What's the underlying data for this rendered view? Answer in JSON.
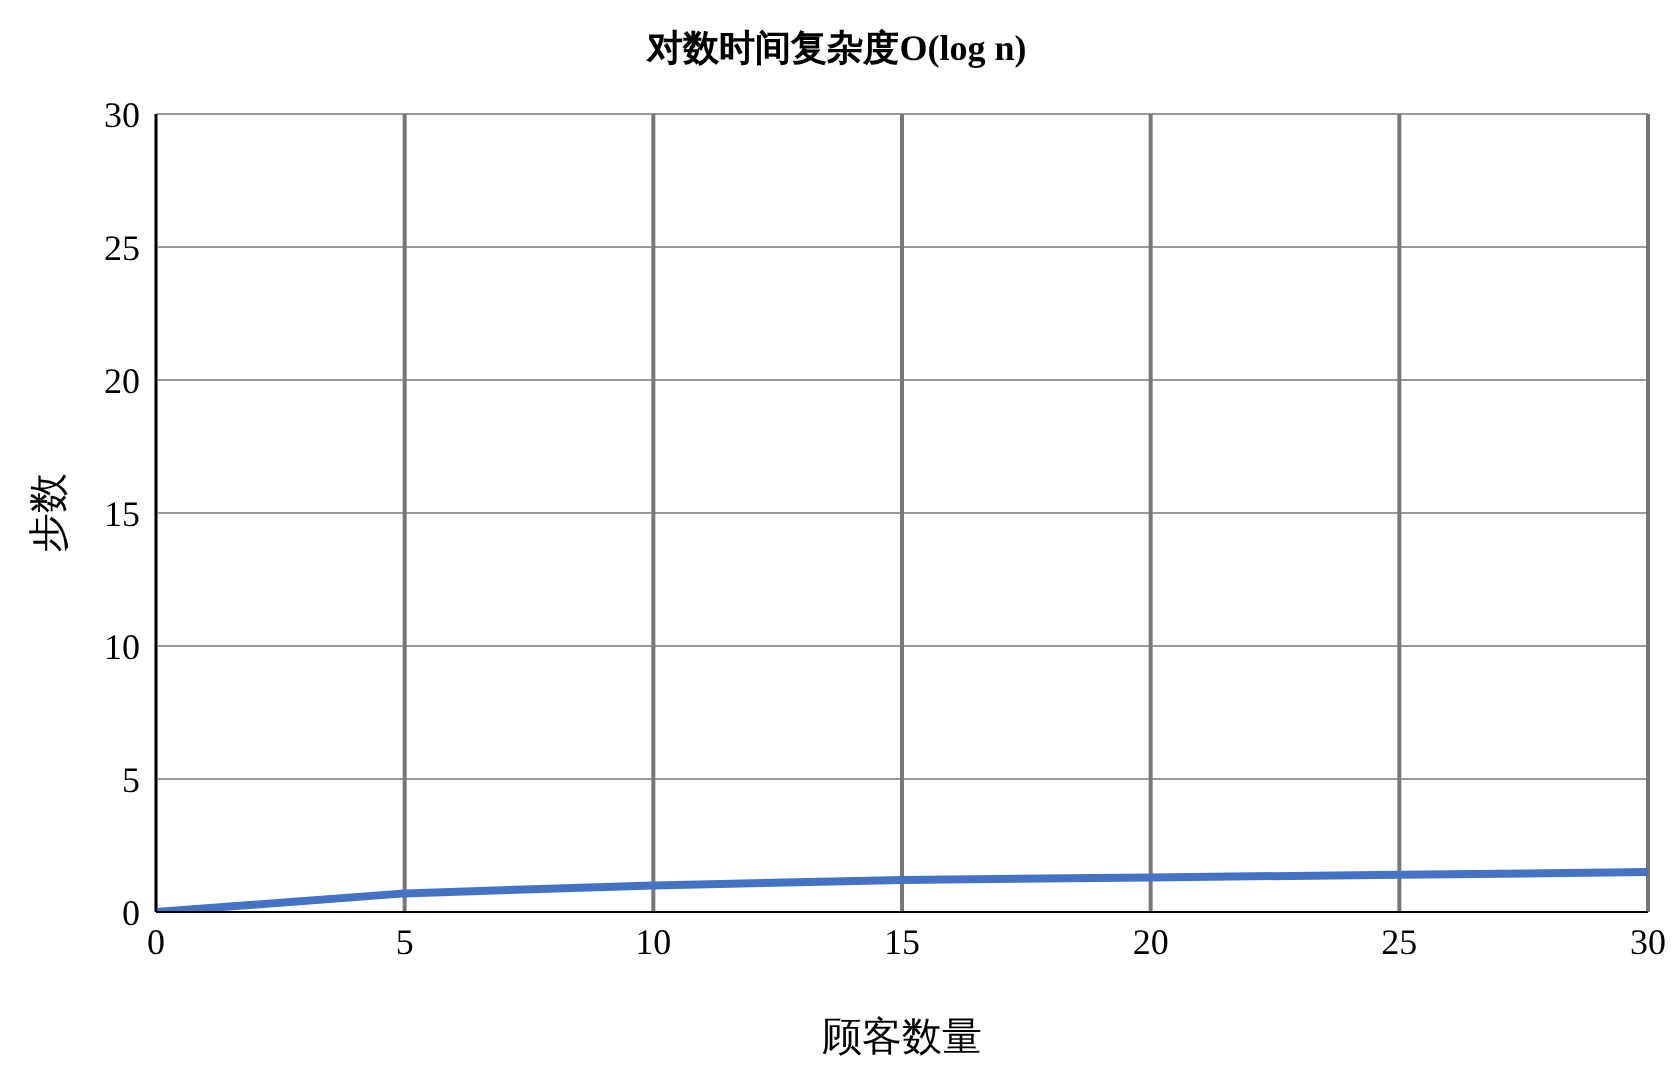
{
  "chart_data": {
    "type": "line",
    "title": "对数时间复杂度O(log n)",
    "xlabel": "顾客数量",
    "ylabel": "步数",
    "x": [
      0,
      5,
      10,
      15,
      20,
      25,
      30
    ],
    "series": [
      {
        "color": "#4472c4",
        "values": [
          0,
          0.7,
          1.0,
          1.2,
          1.3,
          1.4,
          1.5
        ]
      }
    ],
    "xlim": [
      0,
      30
    ],
    "xticks": [
      0,
      5,
      10,
      15,
      20,
      25,
      30
    ],
    "ylim": [
      0,
      30
    ],
    "yticks": [
      0,
      5,
      10,
      15,
      20,
      25,
      30
    ],
    "grid": true,
    "marker": "none",
    "line_style": "solid"
  }
}
